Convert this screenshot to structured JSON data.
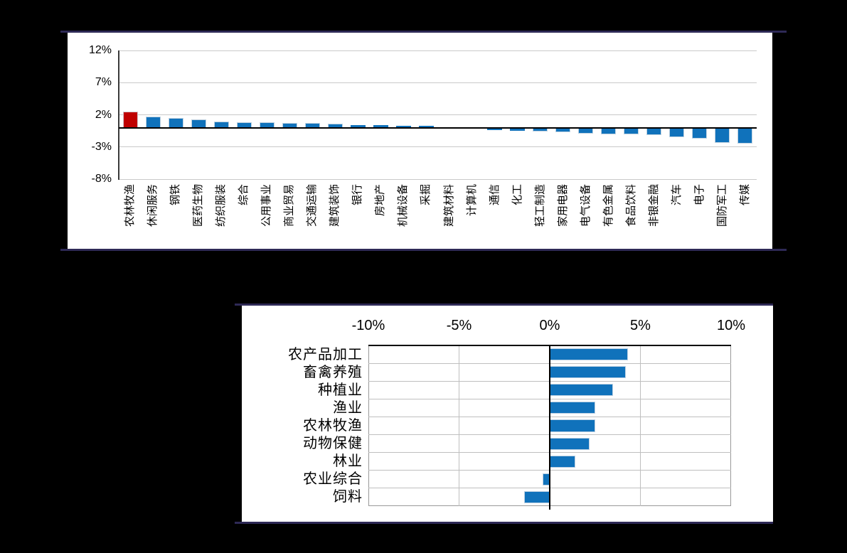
{
  "colors": {
    "background": "#000000",
    "frame_line": "#2E2956",
    "panel": "#FFFFFF",
    "bar_blue": "#1072BB",
    "bar_red": "#C00000",
    "gridline": "#C9C9C9",
    "axis_dark": "#3A3A3A",
    "zero_line": "#000000"
  },
  "chart_data": [
    {
      "type": "bar",
      "title": "",
      "orientation": "vertical",
      "categories": [
        "农林牧渔",
        "休闲服务",
        "钢铁",
        "医药生物",
        "纺织服装",
        "综合",
        "公用事业",
        "商业贸易",
        "交通运输",
        "建筑装饰",
        "银行",
        "房地产",
        "机械设备",
        "采掘",
        "建筑材料",
        "计算机",
        "通信",
        "化工",
        "轻工制造",
        "家用电器",
        "电气设备",
        "有色金属",
        "食品饮料",
        "非银金融",
        "汽车",
        "电子",
        "国防军工",
        "传媒"
      ],
      "values": [
        2.5,
        1.7,
        1.5,
        1.3,
        0.9,
        0.8,
        0.8,
        0.7,
        0.7,
        0.6,
        0.4,
        0.4,
        0.3,
        0.3,
        -0.05,
        -0.1,
        -0.4,
        -0.45,
        -0.6,
        -0.7,
        -0.9,
        -1.0,
        -1.0,
        -1.2,
        -1.5,
        -1.7,
        -2.4,
        -2.5
      ],
      "unit": "%",
      "ylim": [
        -8,
        12
      ],
      "yticks": [
        "12%",
        "7%",
        "2%",
        "-3%",
        "-8%"
      ],
      "ytick_values": [
        12,
        7,
        2,
        -3,
        -8
      ],
      "grid": true,
      "legend": "none",
      "x_label_rotation": -90,
      "highlight_category": "农林牧渔",
      "highlight_color": "#C00000",
      "bar_color": "#1072BB"
    },
    {
      "type": "bar",
      "title": "",
      "orientation": "horizontal",
      "categories": [
        "农产品加工",
        "畜禽养殖",
        "种植业",
        "渔业",
        "农林牧渔",
        "动物保健",
        "林业",
        "农业综合",
        "饲料"
      ],
      "values": [
        4.3,
        4.2,
        3.5,
        2.5,
        2.5,
        2.2,
        1.4,
        -0.4,
        -1.4
      ],
      "unit": "%",
      "xlim": [
        -10,
        10
      ],
      "xticks": [
        "-10%",
        "-5%",
        "0%",
        "5%",
        "10%"
      ],
      "xtick_values": [
        -10,
        -5,
        0,
        5,
        10
      ],
      "grid": true,
      "legend": "none",
      "axis_labels_position": "top",
      "bar_color": "#1072BB"
    }
  ]
}
